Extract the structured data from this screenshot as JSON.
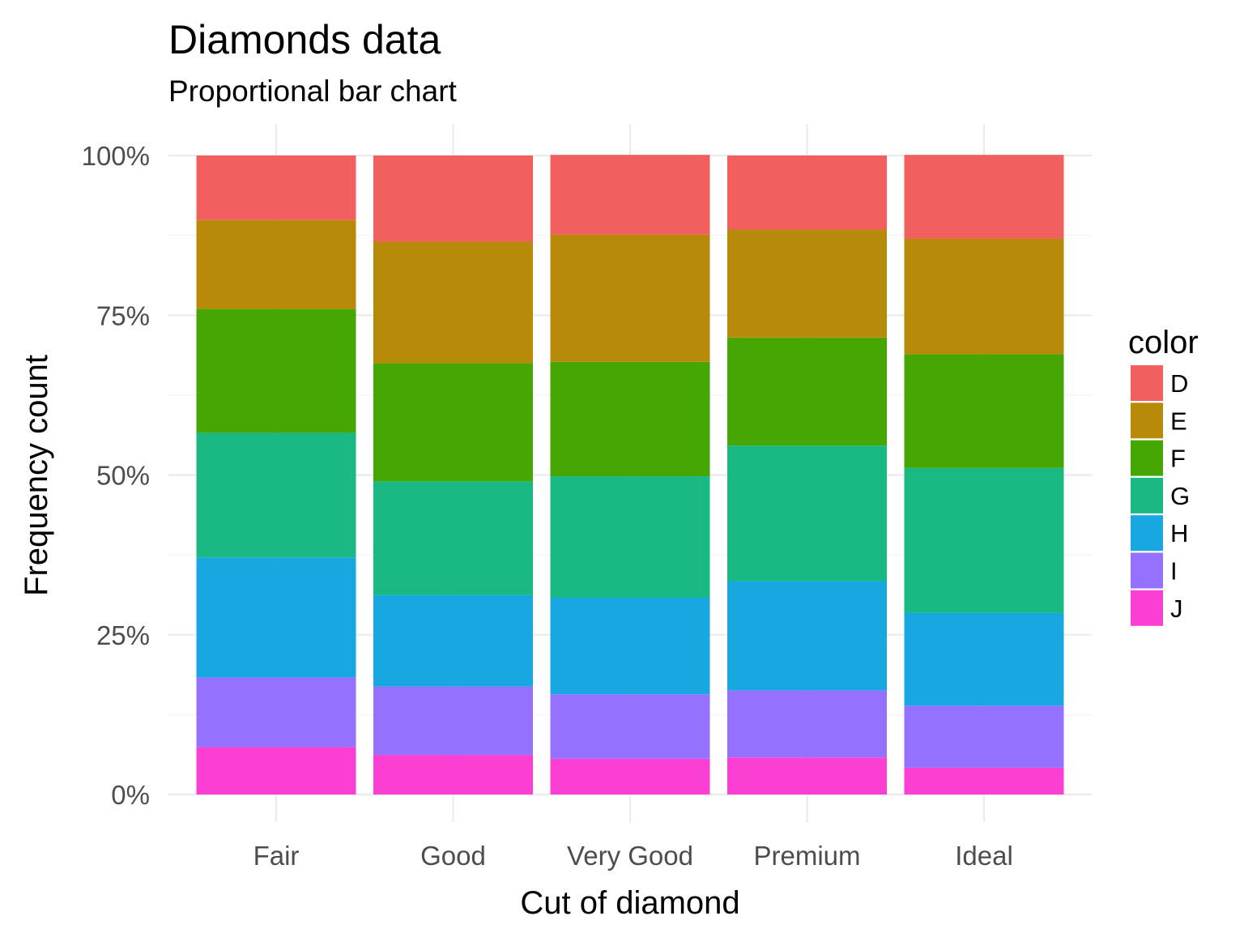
{
  "chart_data": {
    "type": "bar",
    "stacked": "proportional",
    "title": "Diamonds data",
    "subtitle": "Proportional bar chart",
    "xlabel": "Cut of diamond",
    "ylabel": "Frequency count",
    "ylim": [
      0,
      1
    ],
    "y_ticks": [
      "0%",
      "25%",
      "50%",
      "75%",
      "100%"
    ],
    "grid": true,
    "legend_title": "color",
    "legend_position": "right",
    "categories": [
      "Fair",
      "Good",
      "Very Good",
      "Premium",
      "Ideal"
    ],
    "series": [
      {
        "name": "J",
        "color": "#FB3FD3",
        "values": [
          0.074,
          0.062,
          0.056,
          0.058,
          0.042
        ]
      },
      {
        "name": "I",
        "color": "#9571FF",
        "values": [
          0.109,
          0.107,
          0.101,
          0.105,
          0.097
        ]
      },
      {
        "name": "H",
        "color": "#19A7E2",
        "values": [
          0.188,
          0.143,
          0.151,
          0.171,
          0.145
        ]
      },
      {
        "name": "G",
        "color": "#1AB883",
        "values": [
          0.195,
          0.178,
          0.19,
          0.212,
          0.227
        ]
      },
      {
        "name": "F",
        "color": "#46A704",
        "values": [
          0.194,
          0.185,
          0.179,
          0.169,
          0.178
        ]
      },
      {
        "name": "E",
        "color": "#B88A0A",
        "values": [
          0.139,
          0.19,
          0.199,
          0.169,
          0.181
        ]
      },
      {
        "name": "D",
        "color": "#F15F5E",
        "values": [
          0.101,
          0.135,
          0.125,
          0.116,
          0.131
        ]
      }
    ],
    "legend_order": [
      "D",
      "E",
      "F",
      "G",
      "H",
      "I",
      "J"
    ]
  }
}
